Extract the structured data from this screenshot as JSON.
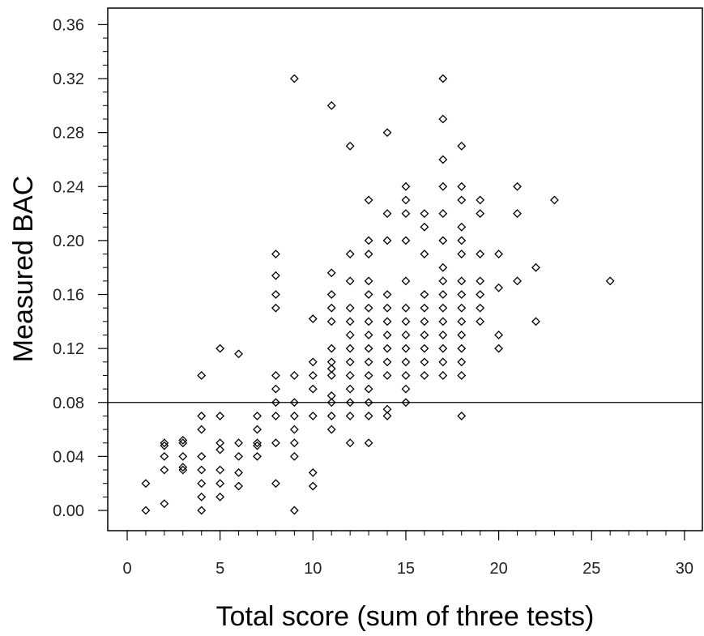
{
  "chart_data": {
    "type": "scatter",
    "title": "",
    "xlabel": "Total score (sum of three tests)",
    "ylabel": "Measured BAC",
    "xlim": [
      0,
      30
    ],
    "ylim": [
      0,
      0.36
    ],
    "x_ticks": [
      "0",
      "5",
      "10",
      "15",
      "20",
      "25",
      "30"
    ],
    "y_ticks": [
      "0.00",
      "0.04",
      "0.08",
      "0.12",
      "0.16",
      "0.20",
      "0.24",
      "0.28",
      "0.32",
      "0.36"
    ],
    "x_tick_values": [
      0,
      5,
      10,
      15,
      20,
      25,
      30
    ],
    "y_tick_values": [
      0,
      0.04,
      0.08,
      0.12,
      0.16,
      0.2,
      0.24,
      0.28,
      0.32,
      0.36
    ],
    "reference_line": {
      "orientation": "horizontal",
      "y": 0.08
    },
    "marker": "open-diamond",
    "grid": false,
    "legend": "none",
    "points": [
      [
        1,
        0
      ],
      [
        1,
        0.02
      ],
      [
        2,
        0.005
      ],
      [
        2,
        0.03
      ],
      [
        2,
        0.04
      ],
      [
        2,
        0.05
      ],
      [
        2,
        0.048
      ],
      [
        3,
        0.03
      ],
      [
        3,
        0.04
      ],
      [
        3,
        0.05
      ],
      [
        3,
        0.052
      ],
      [
        3,
        0.032
      ],
      [
        4,
        0
      ],
      [
        4,
        0.01
      ],
      [
        4,
        0.02
      ],
      [
        4,
        0.03
      ],
      [
        4,
        0.04
      ],
      [
        4,
        0.06
      ],
      [
        4,
        0.07
      ],
      [
        4,
        0.1
      ],
      [
        5,
        0.01
      ],
      [
        5,
        0.02
      ],
      [
        5,
        0.03
      ],
      [
        5,
        0.045
      ],
      [
        5,
        0.05
      ],
      [
        5,
        0.07
      ],
      [
        5,
        0.12
      ],
      [
        6,
        0.018
      ],
      [
        6,
        0.028
      ],
      [
        6,
        0.04
      ],
      [
        6,
        0.05
      ],
      [
        6,
        0.116
      ],
      [
        7,
        0.04
      ],
      [
        7,
        0.048
      ],
      [
        7,
        0.05
      ],
      [
        7,
        0.06
      ],
      [
        7,
        0.07
      ],
      [
        8,
        0.02
      ],
      [
        8,
        0.05
      ],
      [
        8,
        0.07
      ],
      [
        8,
        0.08
      ],
      [
        8,
        0.09
      ],
      [
        8,
        0.1
      ],
      [
        8,
        0.15
      ],
      [
        8,
        0.16
      ],
      [
        8,
        0.174
      ],
      [
        8,
        0.19
      ],
      [
        9,
        0
      ],
      [
        9,
        0.04
      ],
      [
        9,
        0.05
      ],
      [
        9,
        0.06
      ],
      [
        9,
        0.07
      ],
      [
        9,
        0.08
      ],
      [
        9,
        0.1
      ],
      [
        9,
        0.32
      ],
      [
        10,
        0.018
      ],
      [
        10,
        0.028
      ],
      [
        10,
        0.07
      ],
      [
        10,
        0.09
      ],
      [
        10,
        0.1
      ],
      [
        10,
        0.11
      ],
      [
        10,
        0.142
      ],
      [
        11,
        0.06
      ],
      [
        11,
        0.07
      ],
      [
        11,
        0.08
      ],
      [
        11,
        0.085
      ],
      [
        11,
        0.1
      ],
      [
        11,
        0.105
      ],
      [
        11,
        0.11
      ],
      [
        11,
        0.12
      ],
      [
        11,
        0.14
      ],
      [
        11,
        0.15
      ],
      [
        11,
        0.16
      ],
      [
        11,
        0.176
      ],
      [
        11,
        0.3
      ],
      [
        12,
        0.05
      ],
      [
        12,
        0.07
      ],
      [
        12,
        0.08
      ],
      [
        12,
        0.09
      ],
      [
        12,
        0.1
      ],
      [
        12,
        0.11
      ],
      [
        12,
        0.12
      ],
      [
        12,
        0.13
      ],
      [
        12,
        0.14
      ],
      [
        12,
        0.15
      ],
      [
        12,
        0.17
      ],
      [
        12,
        0.19
      ],
      [
        12,
        0.27
      ],
      [
        13,
        0.05
      ],
      [
        13,
        0.07
      ],
      [
        13,
        0.08
      ],
      [
        13,
        0.09
      ],
      [
        13,
        0.1
      ],
      [
        13,
        0.11
      ],
      [
        13,
        0.12
      ],
      [
        13,
        0.13
      ],
      [
        13,
        0.14
      ],
      [
        13,
        0.15
      ],
      [
        13,
        0.16
      ],
      [
        13,
        0.17
      ],
      [
        13,
        0.19
      ],
      [
        13,
        0.2
      ],
      [
        13,
        0.23
      ],
      [
        14,
        0.07
      ],
      [
        14,
        0.075
      ],
      [
        14,
        0.1
      ],
      [
        14,
        0.11
      ],
      [
        14,
        0.12
      ],
      [
        14,
        0.13
      ],
      [
        14,
        0.14
      ],
      [
        14,
        0.15
      ],
      [
        14,
        0.16
      ],
      [
        14,
        0.2
      ],
      [
        14,
        0.22
      ],
      [
        14,
        0.28
      ],
      [
        15,
        0.08
      ],
      [
        15,
        0.09
      ],
      [
        15,
        0.1
      ],
      [
        15,
        0.11
      ],
      [
        15,
        0.12
      ],
      [
        15,
        0.13
      ],
      [
        15,
        0.14
      ],
      [
        15,
        0.15
      ],
      [
        15,
        0.17
      ],
      [
        15,
        0.2
      ],
      [
        15,
        0.22
      ],
      [
        15,
        0.23
      ],
      [
        15,
        0.24
      ],
      [
        16,
        0.1
      ],
      [
        16,
        0.11
      ],
      [
        16,
        0.12
      ],
      [
        16,
        0.13
      ],
      [
        16,
        0.14
      ],
      [
        16,
        0.15
      ],
      [
        16,
        0.16
      ],
      [
        16,
        0.19
      ],
      [
        16,
        0.21
      ],
      [
        16,
        0.22
      ],
      [
        17,
        0.1
      ],
      [
        17,
        0.11
      ],
      [
        17,
        0.12
      ],
      [
        17,
        0.13
      ],
      [
        17,
        0.14
      ],
      [
        17,
        0.15
      ],
      [
        17,
        0.16
      ],
      [
        17,
        0.17
      ],
      [
        17,
        0.18
      ],
      [
        17,
        0.2
      ],
      [
        17,
        0.22
      ],
      [
        17,
        0.24
      ],
      [
        17,
        0.26
      ],
      [
        17,
        0.29
      ],
      [
        17,
        0.32
      ],
      [
        18,
        0.07
      ],
      [
        18,
        0.1
      ],
      [
        18,
        0.11
      ],
      [
        18,
        0.12
      ],
      [
        18,
        0.13
      ],
      [
        18,
        0.14
      ],
      [
        18,
        0.15
      ],
      [
        18,
        0.16
      ],
      [
        18,
        0.17
      ],
      [
        18,
        0.19
      ],
      [
        18,
        0.2
      ],
      [
        18,
        0.21
      ],
      [
        18,
        0.23
      ],
      [
        18,
        0.24
      ],
      [
        18,
        0.27
      ],
      [
        19,
        0.14
      ],
      [
        19,
        0.15
      ],
      [
        19,
        0.16
      ],
      [
        19,
        0.17
      ],
      [
        19,
        0.19
      ],
      [
        19,
        0.22
      ],
      [
        19,
        0.23
      ],
      [
        20,
        0.12
      ],
      [
        20,
        0.13
      ],
      [
        20,
        0.165
      ],
      [
        20,
        0.19
      ],
      [
        21,
        0.17
      ],
      [
        21,
        0.22
      ],
      [
        21,
        0.24
      ],
      [
        22,
        0.14
      ],
      [
        22,
        0.18
      ],
      [
        23,
        0.23
      ],
      [
        26,
        0.17
      ]
    ]
  }
}
